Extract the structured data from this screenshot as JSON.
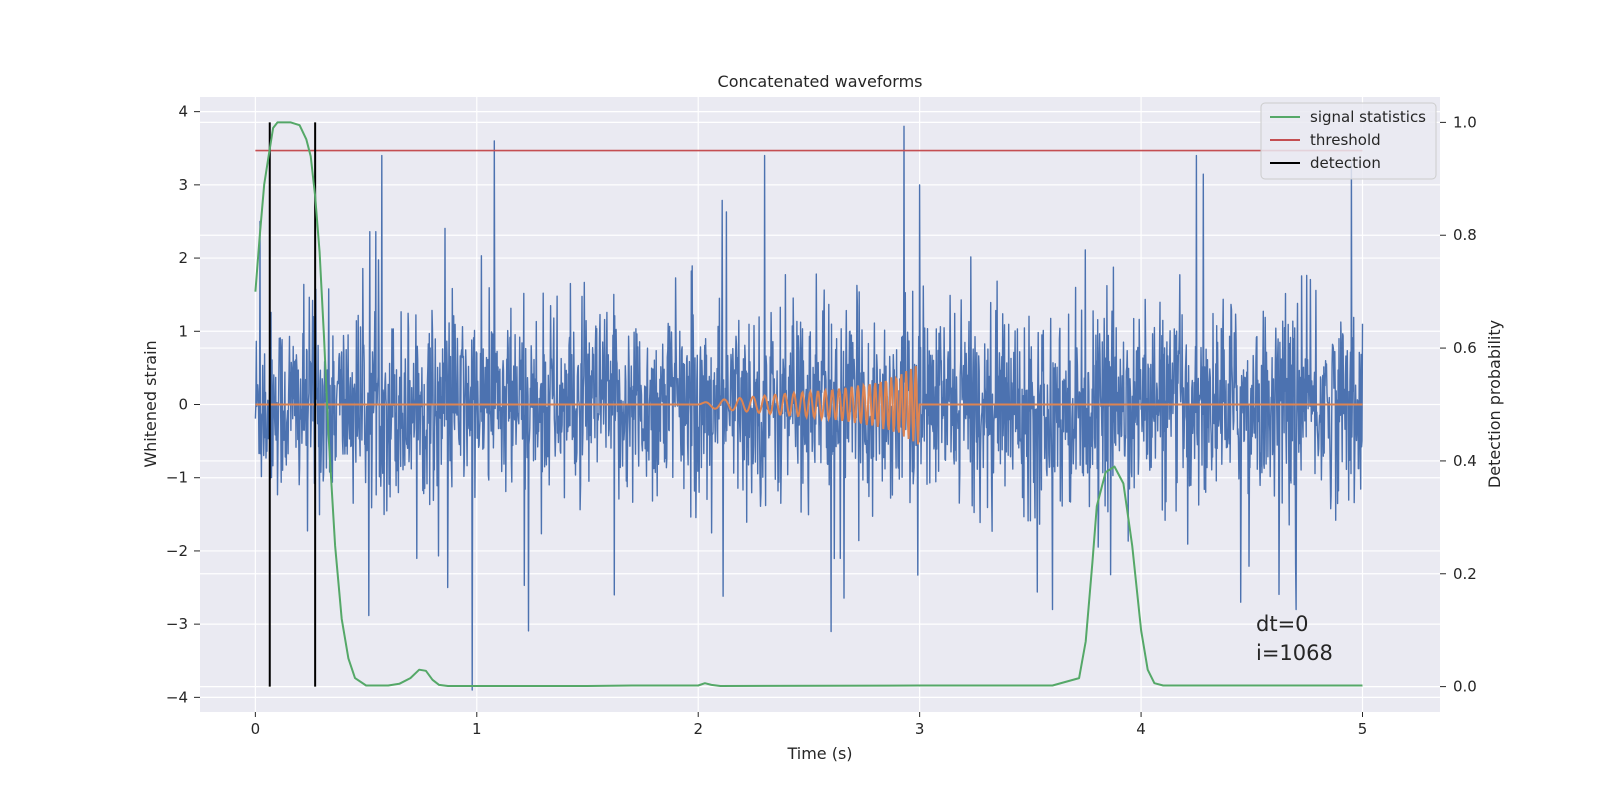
{
  "chart_data": {
    "type": "line",
    "title": "Concatenated waveforms",
    "xlabel": "Time (s)",
    "ylabel": "Whitened strain",
    "y2label": "Detection probability",
    "xlim": [
      -0.25,
      5.35
    ],
    "ylim": [
      -4.2,
      4.2
    ],
    "y2lim": [
      -0.045,
      1.045
    ],
    "xticks": [
      0,
      1,
      2,
      3,
      4,
      5
    ],
    "xtick_labels": [
      "0",
      "1",
      "2",
      "3",
      "4",
      "5"
    ],
    "yticks": [
      -4,
      -3,
      -2,
      -1,
      0,
      1,
      2,
      3,
      4
    ],
    "ytick_labels": [
      "−4",
      "−3",
      "−2",
      "−1",
      "0",
      "1",
      "2",
      "3",
      "4"
    ],
    "y2ticks": [
      0.0,
      0.2,
      0.4,
      0.6,
      0.8,
      1.0
    ],
    "y2tick_labels": [
      "0.0",
      "0.2",
      "0.4",
      "0.6",
      "0.8",
      "1.0"
    ],
    "grid": true,
    "legend_position": "top-right",
    "colors": {
      "strain": "#4c72b0",
      "injected_waveform": "#dd8452",
      "signal_statistics": "#55a868",
      "threshold": "#c44e52",
      "detection": "#000000",
      "axes_background": "#eaeaf2",
      "grid": "#ffffff"
    },
    "series": [
      {
        "name": "signal statistics",
        "axis": "right",
        "x": [
          0.0,
          0.02,
          0.04,
          0.06,
          0.08,
          0.1,
          0.13,
          0.16,
          0.2,
          0.23,
          0.25,
          0.27,
          0.29,
          0.31,
          0.33,
          0.36,
          0.39,
          0.42,
          0.45,
          0.5,
          0.6,
          0.65,
          0.7,
          0.74,
          0.77,
          0.8,
          0.83,
          0.87,
          1.0,
          1.5,
          1.7,
          2.0,
          2.03,
          2.06,
          2.1,
          3.0,
          3.6,
          3.72,
          3.75,
          3.78,
          3.8,
          3.84,
          3.88,
          3.92,
          3.96,
          4.0,
          4.03,
          4.06,
          4.1,
          4.5,
          5.0
        ],
        "y": [
          0.7,
          0.8,
          0.89,
          0.94,
          0.99,
          1.0,
          1.0,
          1.0,
          0.995,
          0.97,
          0.94,
          0.87,
          0.77,
          0.62,
          0.45,
          0.25,
          0.12,
          0.05,
          0.015,
          0.002,
          0.002,
          0.005,
          0.015,
          0.03,
          0.028,
          0.012,
          0.003,
          0.001,
          0.001,
          0.001,
          0.002,
          0.002,
          0.006,
          0.003,
          0.001,
          0.002,
          0.002,
          0.015,
          0.08,
          0.22,
          0.32,
          0.38,
          0.39,
          0.36,
          0.25,
          0.1,
          0.03,
          0.006,
          0.002,
          0.002,
          0.002
        ]
      },
      {
        "name": "threshold",
        "axis": "right",
        "x": [
          0.0,
          5.0
        ],
        "y": [
          0.95,
          0.95
        ]
      },
      {
        "name": "detection",
        "axis": "right",
        "x": [
          0.065,
          0.27
        ],
        "y": [
          0.0,
          1.0
        ]
      },
      {
        "name": "",
        "role": "injected waveform (chirp)",
        "axis": "left",
        "x_range": [
          0.0,
          5.0
        ],
        "chirp_start": 2.0,
        "chirp_end": 3.0,
        "envelope": [
          [
            2.0,
            0.0
          ],
          [
            2.05,
            0.05
          ],
          [
            2.4,
            0.15
          ],
          [
            2.6,
            0.2
          ],
          [
            2.8,
            0.3
          ],
          [
            2.9,
            0.4
          ],
          [
            2.97,
            0.5
          ],
          [
            2.995,
            0.55
          ],
          [
            3.0,
            0.0
          ]
        ],
        "cycles": [
          [
            2.0,
            0.0
          ],
          [
            2.2,
            0.12
          ],
          [
            2.4,
            0.2
          ],
          [
            2.6,
            0.28
          ],
          [
            2.8,
            0.38
          ],
          [
            3.0,
            0.55
          ]
        ]
      },
      {
        "name": "",
        "role": "whitened strain (noise)",
        "axis": "left",
        "x_range": [
          0.0,
          5.0
        ],
        "band": [
          -0.8,
          0.75
        ],
        "spikes": [
          [
            0.02,
            2.5
          ],
          [
            0.57,
            3.4
          ],
          [
            0.98,
            -3.9
          ],
          [
            1.08,
            3.6
          ],
          [
            1.62,
            -2.6
          ],
          [
            2.3,
            3.4
          ],
          [
            2.6,
            -3.1
          ],
          [
            2.93,
            3.8
          ],
          [
            3.0,
            3.0
          ],
          [
            3.6,
            -2.8
          ],
          [
            4.25,
            3.4
          ],
          [
            4.45,
            -2.7
          ],
          [
            4.7,
            -2.8
          ],
          [
            4.95,
            3.3
          ]
        ]
      }
    ],
    "legend": [
      "signal statistics",
      "threshold",
      "detection"
    ],
    "annotations": {
      "dt": "dt=0",
      "i": "i=1068"
    }
  }
}
